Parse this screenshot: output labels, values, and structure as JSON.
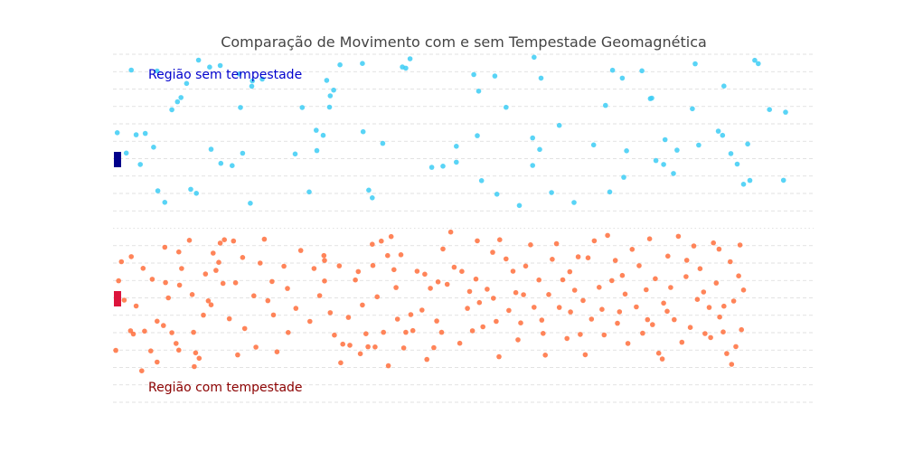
{
  "chart_data": {
    "type": "scatter",
    "title": "Comparação de Movimento com e sem Tempestade Geomagnética",
    "xlabel": "",
    "ylabel": "",
    "xlim": [
      0,
      1
    ],
    "ylim": [
      -1,
      1
    ],
    "grid": true,
    "colors": {
      "top_points": "#3ccdf5",
      "bottom_points": "#ff6f3c",
      "top_marker": "#00008b",
      "bottom_marker": "#dc143c",
      "top_label": "#0000cd",
      "bottom_label": "#8b0000",
      "grid": "#d9d9d9"
    },
    "annotations": {
      "top": "Região sem tempestade",
      "bottom": "Região com tempestade"
    },
    "series": [
      {
        "points": [
          [
            0.006,
            0.549
          ],
          [
            0.019,
            0.432
          ],
          [
            0.026,
            0.909
          ],
          [
            0.033,
            0.537
          ],
          [
            0.039,
            0.367
          ],
          [
            0.046,
            0.545
          ],
          [
            0.058,
            0.466
          ],
          [
            0.063,
            0.904
          ],
          [
            0.064,
            0.215
          ],
          [
            0.074,
            0.149
          ],
          [
            0.084,
            0.681
          ],
          [
            0.092,
            0.727
          ],
          [
            0.097,
            0.751
          ],
          [
            0.105,
            0.832
          ],
          [
            0.111,
            0.224
          ],
          [
            0.119,
            0.201
          ],
          [
            0.122,
            0.966
          ],
          [
            0.138,
            0.926
          ],
          [
            0.14,
            0.454
          ],
          [
            0.154,
            0.373
          ],
          [
            0.153,
            0.935
          ],
          [
            0.17,
            0.36
          ],
          [
            0.185,
            0.431
          ],
          [
            0.18,
            0.887
          ],
          [
            0.182,
            0.694
          ],
          [
            0.196,
            0.144
          ],
          [
            0.198,
            0.816
          ],
          [
            0.199,
            0.847
          ],
          [
            0.213,
            0.857
          ],
          [
            0.26,
            0.427
          ],
          [
            0.27,
            0.694
          ],
          [
            0.28,
            0.209
          ],
          [
            0.29,
            0.563
          ],
          [
            0.291,
            0.446
          ],
          [
            0.3,
            0.534
          ],
          [
            0.305,
            0.85
          ],
          [
            0.309,
            0.696
          ],
          [
            0.31,
            0.761
          ],
          [
            0.315,
            0.794
          ],
          [
            0.324,
            0.939
          ],
          [
            0.356,
            0.947
          ],
          [
            0.357,
            0.555
          ],
          [
            0.365,
            0.219
          ],
          [
            0.37,
            0.175
          ],
          [
            0.385,
            0.488
          ],
          [
            0.413,
            0.927
          ],
          [
            0.418,
            0.92
          ],
          [
            0.424,
            0.974
          ],
          [
            0.455,
            0.35
          ],
          [
            0.471,
            0.357
          ],
          [
            0.49,
            0.471
          ],
          [
            0.49,
            0.38
          ],
          [
            0.515,
            0.883
          ],
          [
            0.52,
            0.532
          ],
          [
            0.522,
            0.788
          ],
          [
            0.526,
            0.274
          ],
          [
            0.545,
            0.875
          ],
          [
            0.548,
            0.196
          ],
          [
            0.561,
            0.695
          ],
          [
            0.58,
            0.131
          ],
          [
            0.599,
            0.519
          ],
          [
            0.599,
            0.361
          ],
          [
            0.601,
            0.983
          ],
          [
            0.609,
            0.453
          ],
          [
            0.611,
            0.863
          ],
          [
            0.626,
            0.205
          ],
          [
            0.637,
            0.591
          ],
          [
            0.658,
            0.148
          ],
          [
            0.686,
            0.479
          ],
          [
            0.703,
            0.706
          ],
          [
            0.709,
            0.209
          ],
          [
            0.713,
            0.908
          ],
          [
            0.727,
            0.863
          ],
          [
            0.729,
            0.293
          ],
          [
            0.733,
            0.445
          ],
          [
            0.755,
            0.905
          ],
          [
            0.767,
            0.745
          ],
          [
            0.769,
            0.748
          ],
          [
            0.775,
            0.389
          ],
          [
            0.786,
            0.367
          ],
          [
            0.788,
            0.509
          ],
          [
            0.8,
            0.315
          ],
          [
            0.805,
            0.449
          ],
          [
            0.827,
            0.687
          ],
          [
            0.831,
            0.945
          ],
          [
            0.836,
            0.478
          ],
          [
            0.864,
            0.558
          ],
          [
            0.87,
            0.534
          ],
          [
            0.872,
            0.817
          ],
          [
            0.882,
            0.429
          ],
          [
            0.891,
            0.369
          ],
          [
            0.9,
            0.253
          ],
          [
            0.906,
            0.484
          ],
          [
            0.909,
            0.275
          ],
          [
            0.916,
            0.965
          ],
          [
            0.921,
            0.946
          ],
          [
            0.937,
            0.682
          ],
          [
            0.957,
            0.276
          ],
          [
            0.96,
            0.667
          ]
        ]
      },
      {
        "points": [
          [
            0.012,
            -0.192
          ],
          [
            0.008,
            -0.302
          ],
          [
            0.016,
            -0.413
          ],
          [
            0.025,
            -0.589
          ],
          [
            0.026,
            -0.163
          ],
          [
            0.029,
            -0.608
          ],
          [
            0.041,
            -0.819
          ],
          [
            0.045,
            -0.591
          ],
          [
            0.054,
            -0.705
          ],
          [
            0.056,
            -0.293
          ],
          [
            0.063,
            -0.534
          ],
          [
            0.063,
            -0.769
          ],
          [
            0.072,
            -0.559
          ],
          [
            0.074,
            -0.109
          ],
          [
            0.075,
            -0.312
          ],
          [
            0.079,
            -0.4
          ],
          [
            0.084,
            -0.6
          ],
          [
            0.09,
            -0.662
          ],
          [
            0.094,
            -0.7
          ],
          [
            0.095,
            -0.327
          ],
          [
            0.098,
            -0.231
          ],
          [
            0.109,
            -0.069
          ],
          [
            0.113,
            -0.381
          ],
          [
            0.115,
            -0.598
          ],
          [
            0.118,
            -0.716
          ],
          [
            0.123,
            -0.747
          ],
          [
            0.129,
            -0.499
          ],
          [
            0.136,
            -0.417
          ],
          [
            0.143,
            -0.143
          ],
          [
            0.147,
            -0.242
          ],
          [
            0.151,
            -0.196
          ],
          [
            0.153,
            -0.085
          ],
          [
            0.157,
            -0.317
          ],
          [
            0.159,
            -0.066
          ],
          [
            0.172,
            -0.073
          ],
          [
            0.175,
            -0.313
          ],
          [
            0.178,
            -0.728
          ],
          [
            0.185,
            -0.168
          ],
          [
            0.188,
            -0.576
          ],
          [
            0.201,
            -0.388
          ],
          [
            0.204,
            -0.683
          ],
          [
            0.21,
            -0.2
          ],
          [
            0.216,
            -0.063
          ],
          [
            0.227,
            -0.306
          ],
          [
            0.229,
            -0.498
          ],
          [
            0.244,
            -0.218
          ],
          [
            0.25,
            -0.599
          ],
          [
            0.261,
            -0.46
          ],
          [
            0.287,
            -0.231
          ],
          [
            0.295,
            -0.387
          ],
          [
            0.301,
            -0.157
          ],
          [
            0.302,
            -0.185
          ],
          [
            0.302,
            -0.303
          ],
          [
            0.31,
            -0.485
          ],
          [
            0.316,
            -0.614
          ],
          [
            0.325,
            -0.773
          ],
          [
            0.328,
            -0.666
          ],
          [
            0.338,
            -0.672
          ],
          [
            0.346,
            -0.297
          ],
          [
            0.356,
            -0.441
          ],
          [
            0.353,
            -0.721
          ],
          [
            0.361,
            -0.606
          ],
          [
            0.364,
            -0.681
          ],
          [
            0.37,
            -0.092
          ],
          [
            0.371,
            -0.214
          ],
          [
            0.377,
            -0.394
          ],
          [
            0.383,
            -0.074
          ],
          [
            0.386,
            -0.598
          ],
          [
            0.392,
            -0.157
          ],
          [
            0.397,
            -0.048
          ],
          [
            0.401,
            -0.238
          ],
          [
            0.404,
            -0.341
          ],
          [
            0.406,
            -0.522
          ],
          [
            0.418,
            -0.598
          ],
          [
            0.425,
            -0.496
          ],
          [
            0.428,
            -0.588
          ],
          [
            0.434,
            -0.247
          ],
          [
            0.441,
            -0.47
          ],
          [
            0.445,
            -0.264
          ],
          [
            0.453,
            -0.345
          ],
          [
            0.458,
            -0.686
          ],
          [
            0.464,
            -0.308
          ],
          [
            0.469,
            -0.598
          ],
          [
            0.477,
            -0.322
          ],
          [
            0.482,
            -0.022
          ],
          [
            0.487,
            -0.224
          ],
          [
            0.495,
            -0.661
          ],
          [
            0.506,
            -0.46
          ],
          [
            0.509,
            -0.363
          ],
          [
            0.513,
            -0.589
          ],
          [
            0.52,
            -0.072
          ],
          [
            0.523,
            -0.427
          ],
          [
            0.534,
            -0.35
          ],
          [
            0.542,
            -0.138
          ],
          [
            0.543,
            -0.402
          ],
          [
            0.547,
            -0.535
          ],
          [
            0.552,
            -0.066
          ],
          [
            0.561,
            -0.176
          ],
          [
            0.571,
            -0.247
          ],
          [
            0.575,
            -0.37
          ],
          [
            0.578,
            -0.641
          ],
          [
            0.582,
            -0.544
          ],
          [
            0.586,
            -0.382
          ],
          [
            0.596,
            -0.095
          ],
          [
            0.601,
            -0.454
          ],
          [
            0.608,
            -0.297
          ],
          [
            0.614,
            -0.604
          ],
          [
            0.617,
            -0.729
          ],
          [
            0.622,
            -0.381
          ],
          [
            0.627,
            -0.178
          ],
          [
            0.637,
            -0.455
          ],
          [
            0.642,
            -0.296
          ],
          [
            0.648,
            -0.633
          ],
          [
            0.653,
            -0.481
          ],
          [
            0.659,
            -0.356
          ],
          [
            0.664,
            -0.164
          ],
          [
            0.667,
            -0.61
          ],
          [
            0.671,
            -0.415
          ],
          [
            0.678,
            -0.17
          ],
          [
            0.683,
            -0.522
          ],
          [
            0.687,
            -0.072
          ],
          [
            0.694,
            -0.339
          ],
          [
            0.701,
            -0.613
          ],
          [
            0.706,
            -0.041
          ],
          [
            0.712,
            -0.301
          ],
          [
            0.717,
            -0.185
          ],
          [
            0.723,
            -0.48
          ],
          [
            0.731,
            -0.378
          ],
          [
            0.735,
            -0.662
          ],
          [
            0.741,
            -0.121
          ],
          [
            0.747,
            -0.452
          ],
          [
            0.751,
            -0.215
          ],
          [
            0.756,
            -0.603
          ],
          [
            0.761,
            -0.353
          ],
          [
            0.766,
            -0.061
          ],
          [
            0.77,
            -0.554
          ],
          [
            0.774,
            -0.29
          ],
          [
            0.779,
            -0.718
          ],
          [
            0.786,
            -0.43
          ],
          [
            0.792,
            -0.16
          ],
          [
            0.796,
            -0.34
          ],
          [
            0.801,
            -0.525
          ],
          [
            0.807,
            -0.046
          ],
          [
            0.812,
            -0.655
          ],
          [
            0.818,
            -0.278
          ],
          [
            0.824,
            -0.57
          ],
          [
            0.829,
            -0.102
          ],
          [
            0.834,
            -0.409
          ],
          [
            0.838,
            -0.232
          ],
          [
            0.845,
            -0.605
          ],
          [
            0.851,
            -0.455
          ],
          [
            0.857,
            -0.084
          ],
          [
            0.861,
            -0.315
          ],
          [
            0.865,
            -0.12
          ],
          [
            0.866,
            -0.51
          ],
          [
            0.871,
            -0.596
          ],
          [
            0.876,
            -0.72
          ],
          [
            0.881,
            -0.192
          ],
          [
            0.886,
            -0.418
          ],
          [
            0.889,
            -0.68
          ],
          [
            0.893,
            -0.274
          ],
          [
            0.897,
            -0.583
          ],
          [
            0.9,
            -0.355
          ],
          [
            0.004,
            -0.702
          ],
          [
            0.033,
            -0.447
          ],
          [
            0.094,
            -0.136
          ],
          [
            0.132,
            -0.263
          ],
          [
            0.166,
            -0.52
          ],
          [
            0.234,
            -0.71
          ],
          [
            0.268,
            -0.128
          ],
          [
            0.281,
            -0.535
          ],
          [
            0.323,
            -0.216
          ],
          [
            0.336,
            -0.512
          ],
          [
            0.374,
            -0.682
          ],
          [
            0.411,
            -0.152
          ],
          [
            0.448,
            -0.754
          ],
          [
            0.471,
            -0.119
          ],
          [
            0.498,
            -0.248
          ],
          [
            0.528,
            -0.566
          ],
          [
            0.565,
            -0.472
          ],
          [
            0.589,
            -0.217
          ],
          [
            0.633,
            -0.089
          ],
          [
            0.674,
            -0.727
          ],
          [
            0.698,
            -0.466
          ],
          [
            0.727,
            -0.271
          ],
          [
            0.763,
            -0.525
          ],
          [
            0.784,
            -0.751
          ],
          [
            0.819,
            -0.184
          ],
          [
            0.853,
            -0.628
          ],
          [
            0.883,
            -0.782
          ],
          [
            0.043,
            -0.23
          ],
          [
            0.116,
            -0.795
          ],
          [
            0.221,
            -0.416
          ],
          [
            0.35,
            -0.249
          ],
          [
            0.415,
            -0.688
          ],
          [
            0.462,
            -0.533
          ],
          [
            0.551,
            -0.738
          ],
          [
            0.612,
            -0.528
          ],
          [
            0.72,
            -0.546
          ],
          [
            0.843,
            -0.366
          ],
          [
            0.895,
            -0.096
          ],
          [
            0.14,
            -0.44
          ],
          [
            0.249,
            -0.346
          ],
          [
            0.393,
            -0.79
          ],
          [
            0.518,
            -0.292
          ],
          [
            0.652,
            -0.25
          ],
          [
            0.791,
            -0.477
          ],
          [
            0.872,
            -0.448
          ]
        ]
      }
    ]
  }
}
